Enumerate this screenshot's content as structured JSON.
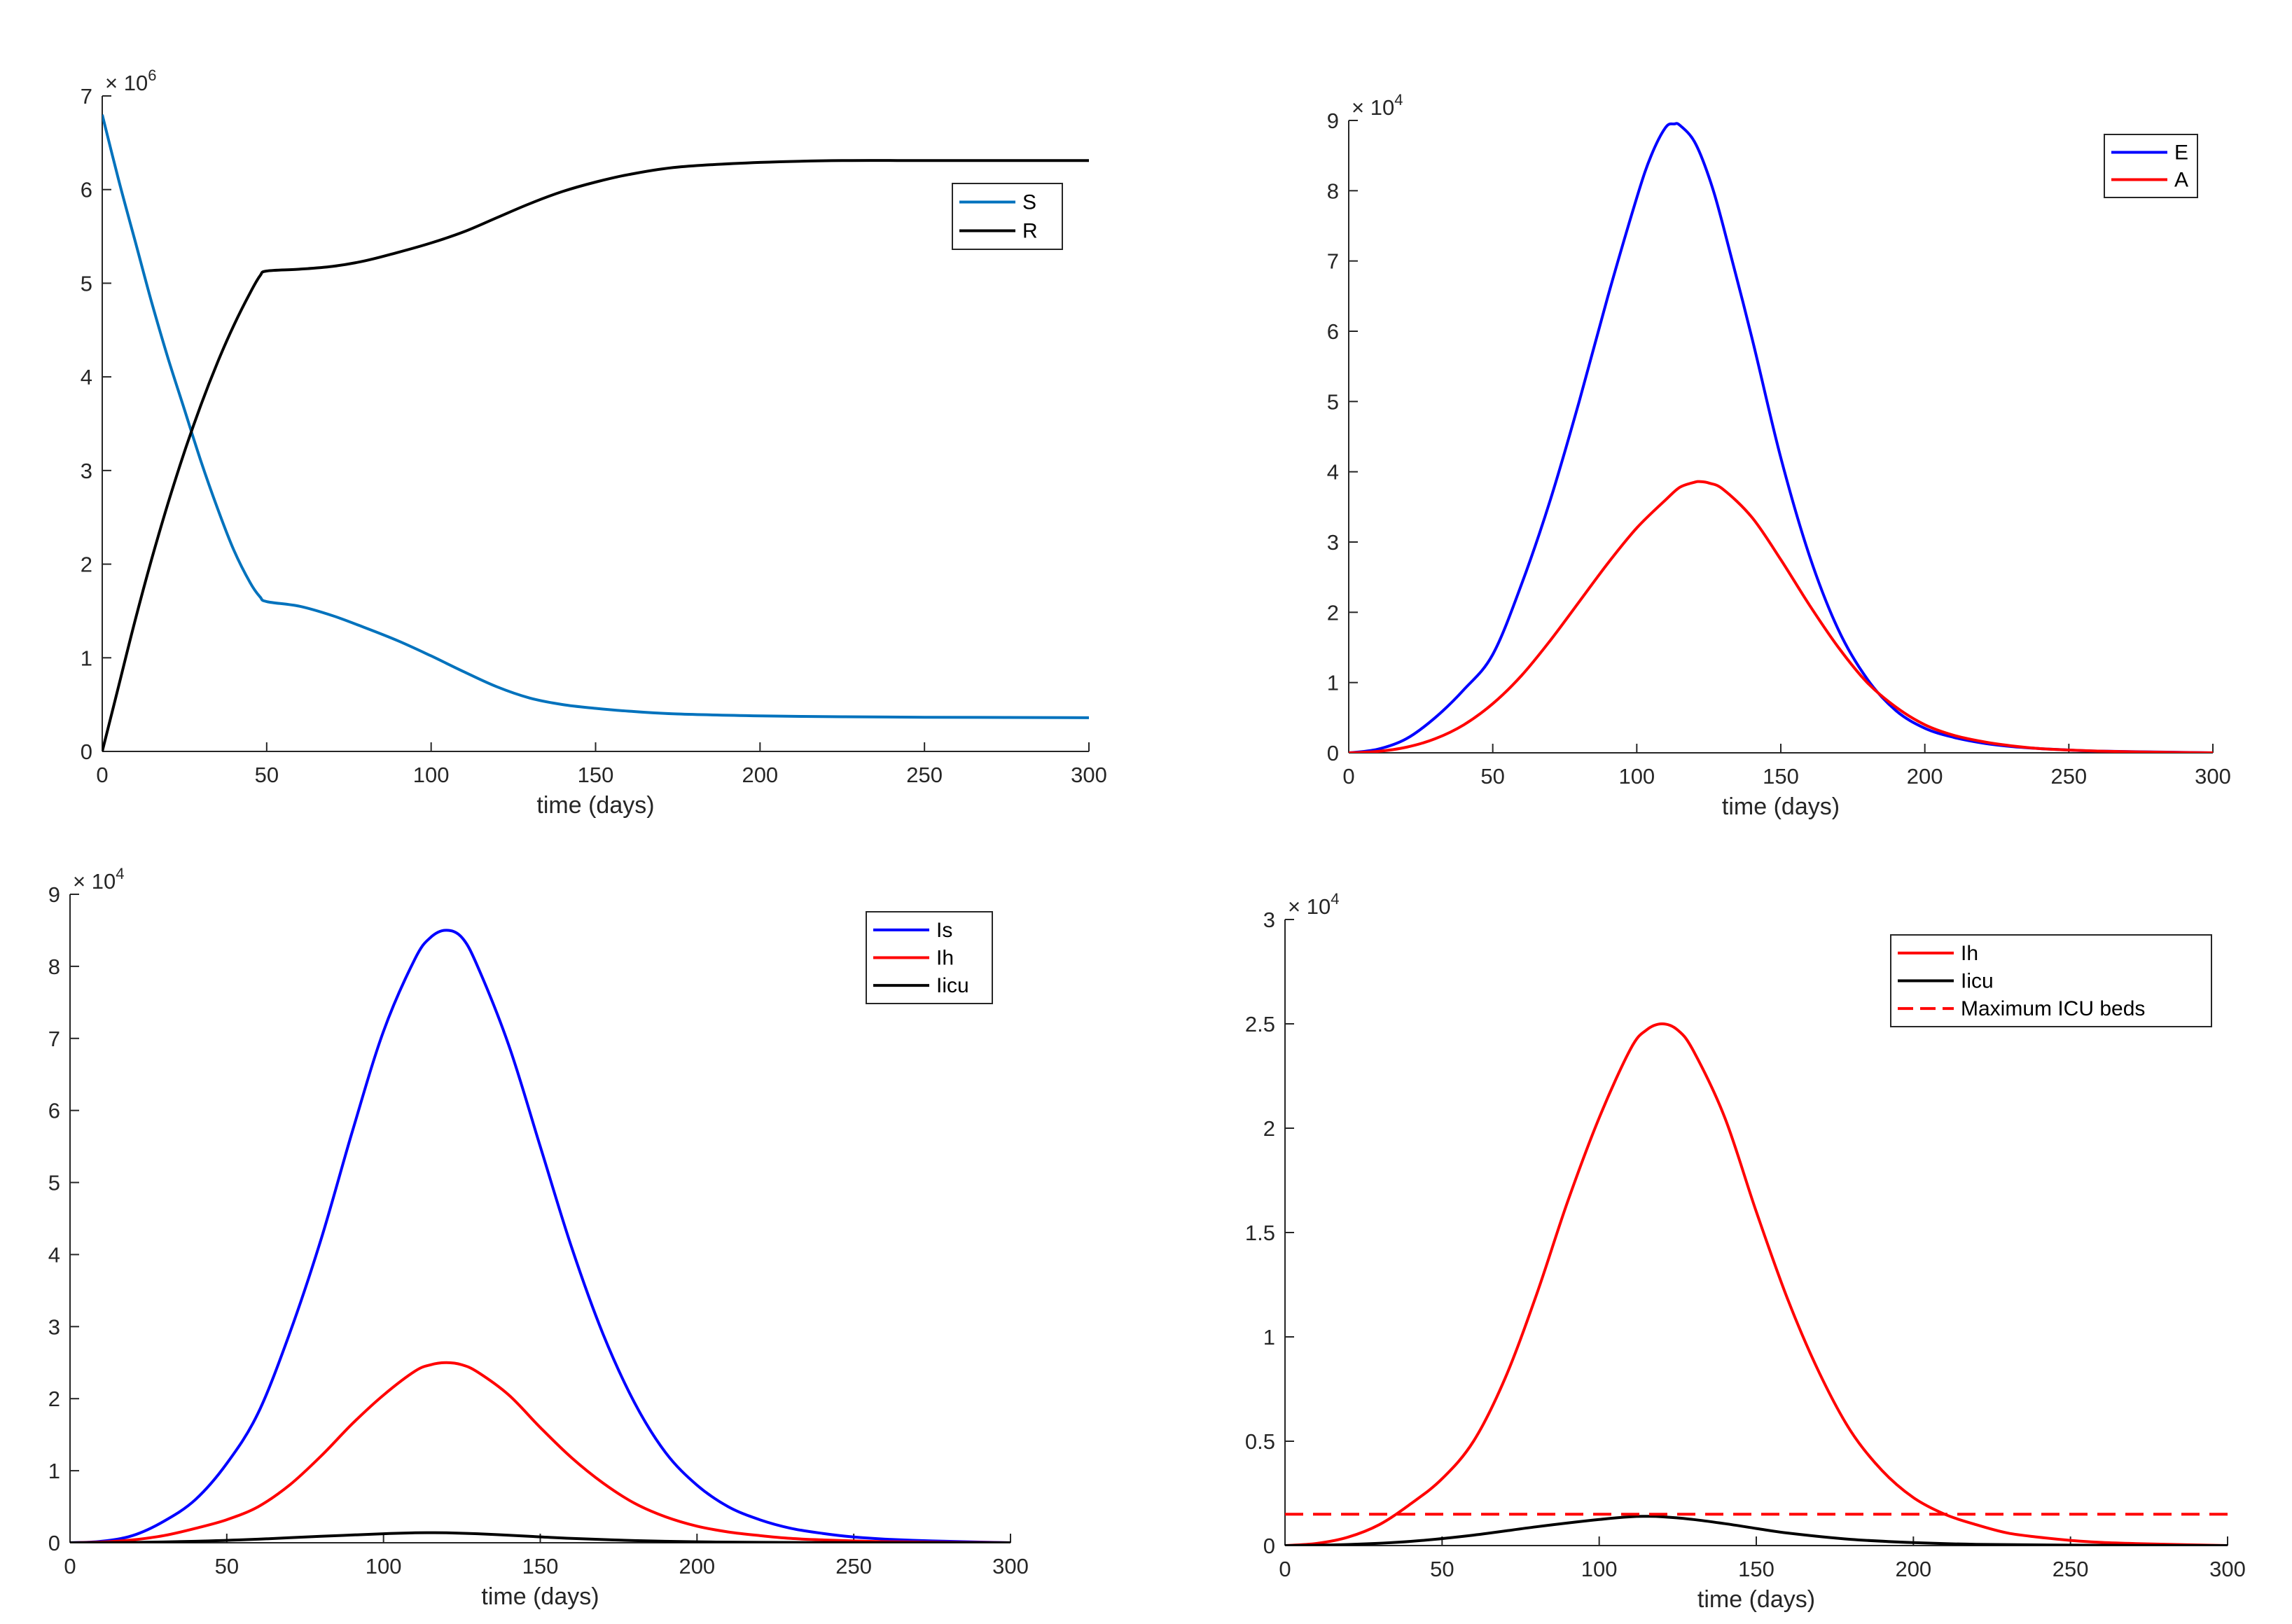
{
  "chart_data": [
    {
      "id": "panel-sr",
      "type": "line",
      "title": "",
      "xlabel": "time (days)",
      "ylabel": "",
      "xlim": [
        0,
        300
      ],
      "ylim": [
        0,
        7
      ],
      "xticks": [
        0,
        50,
        100,
        150,
        200,
        250,
        300
      ],
      "xtick_labels": [
        "0",
        "50",
        "100",
        "150",
        "200",
        "250",
        "300"
      ],
      "yticks": [
        0,
        1,
        2,
        3,
        4,
        5,
        6,
        7
      ],
      "ytick_labels": [
        "0",
        "1",
        "2",
        "3",
        "4",
        "5",
        "6",
        "7"
      ],
      "exponent_base": "× 10",
      "exponent_power": "6",
      "grid": false,
      "legend_position": "top-right",
      "series": [
        {
          "name": "S",
          "color": "#0072BD",
          "dash": "solid",
          "x": [
            0,
            5,
            10,
            15,
            20,
            25,
            30,
            35,
            40,
            45,
            48,
            50,
            60,
            70,
            80,
            90,
            100,
            110,
            120,
            130,
            140,
            150,
            160,
            175,
            200,
            225,
            250,
            275,
            300
          ],
          "values": [
            6.8,
            6.1,
            5.45,
            4.8,
            4.2,
            3.65,
            3.1,
            2.6,
            2.15,
            1.8,
            1.65,
            1.6,
            1.55,
            1.45,
            1.32,
            1.18,
            1.02,
            0.85,
            0.69,
            0.57,
            0.5,
            0.46,
            0.43,
            0.4,
            0.38,
            0.37,
            0.365,
            0.363,
            0.36
          ]
        },
        {
          "name": "R",
          "color": "#000000",
          "dash": "solid",
          "x": [
            0,
            5,
            10,
            15,
            20,
            25,
            30,
            35,
            40,
            45,
            48,
            50,
            60,
            70,
            80,
            90,
            100,
            110,
            120,
            130,
            140,
            150,
            160,
            175,
            200,
            225,
            250,
            275,
            300
          ],
          "values": [
            0.0,
            0.7,
            1.4,
            2.05,
            2.65,
            3.2,
            3.7,
            4.15,
            4.55,
            4.9,
            5.08,
            5.13,
            5.15,
            5.18,
            5.24,
            5.33,
            5.43,
            5.55,
            5.7,
            5.85,
            5.98,
            6.08,
            6.16,
            6.24,
            6.29,
            6.31,
            6.31,
            6.31,
            6.31
          ]
        }
      ]
    },
    {
      "id": "panel-ea",
      "type": "line",
      "title": "",
      "xlabel": "time (days)",
      "ylabel": "",
      "xlim": [
        0,
        300
      ],
      "ylim": [
        0,
        9
      ],
      "xticks": [
        0,
        50,
        100,
        150,
        200,
        250,
        300
      ],
      "xtick_labels": [
        "0",
        "50",
        "100",
        "150",
        "200",
        "250",
        "300"
      ],
      "yticks": [
        0,
        1,
        2,
        3,
        4,
        5,
        6,
        7,
        8,
        9
      ],
      "ytick_labels": [
        "0",
        "1",
        "2",
        "3",
        "4",
        "5",
        "6",
        "7",
        "8",
        "9"
      ],
      "exponent_base": "× 10",
      "exponent_power": "4",
      "grid": false,
      "legend_position": "top-right",
      "series": [
        {
          "name": "E",
          "color": "#0000FF",
          "dash": "solid",
          "x": [
            0,
            10,
            20,
            30,
            40,
            50,
            60,
            70,
            80,
            90,
            100,
            105,
            110,
            113,
            115,
            120,
            125,
            130,
            140,
            150,
            160,
            170,
            180,
            190,
            200,
            210,
            220,
            230,
            240,
            250,
            260,
            275,
            300
          ],
          "values": [
            0.0,
            0.05,
            0.2,
            0.5,
            0.9,
            1.4,
            2.4,
            3.6,
            5.0,
            6.5,
            7.9,
            8.5,
            8.9,
            8.95,
            8.93,
            8.7,
            8.2,
            7.5,
            5.9,
            4.2,
            2.8,
            1.75,
            1.05,
            0.6,
            0.35,
            0.22,
            0.14,
            0.09,
            0.06,
            0.04,
            0.025,
            0.015,
            0.0
          ]
        },
        {
          "name": "A",
          "color": "#FF0000",
          "dash": "solid",
          "x": [
            0,
            10,
            20,
            30,
            40,
            50,
            60,
            70,
            80,
            90,
            100,
            110,
            115,
            120,
            122,
            125,
            130,
            140,
            150,
            160,
            170,
            180,
            190,
            200,
            210,
            220,
            230,
            240,
            250,
            260,
            275,
            300
          ],
          "values": [
            0.0,
            0.02,
            0.08,
            0.2,
            0.4,
            0.7,
            1.1,
            1.6,
            2.15,
            2.7,
            3.2,
            3.6,
            3.78,
            3.85,
            3.86,
            3.84,
            3.75,
            3.35,
            2.75,
            2.1,
            1.5,
            1.0,
            0.65,
            0.4,
            0.25,
            0.16,
            0.1,
            0.06,
            0.04,
            0.025,
            0.012,
            0.0
          ]
        }
      ]
    },
    {
      "id": "panel-is",
      "type": "line",
      "title": "",
      "xlabel": "time (days)",
      "ylabel": "",
      "xlim": [
        0,
        300
      ],
      "ylim": [
        0,
        9
      ],
      "xticks": [
        0,
        50,
        100,
        150,
        200,
        250,
        300
      ],
      "xtick_labels": [
        "0",
        "50",
        "100",
        "150",
        "200",
        "250",
        "300"
      ],
      "yticks": [
        0,
        1,
        2,
        3,
        4,
        5,
        6,
        7,
        8,
        9
      ],
      "ytick_labels": [
        "0",
        "1",
        "2",
        "3",
        "4",
        "5",
        "6",
        "7",
        "8",
        "9"
      ],
      "exponent_base": "× 10",
      "exponent_power": "4",
      "grid": false,
      "legend_position": "top-right",
      "series": [
        {
          "name": "Is",
          "color": "#0000FF",
          "dash": "solid",
          "x": [
            0,
            10,
            20,
            30,
            40,
            50,
            60,
            70,
            80,
            90,
            100,
            110,
            115,
            120,
            125,
            130,
            140,
            150,
            160,
            170,
            180,
            190,
            200,
            210,
            220,
            230,
            240,
            250,
            260,
            275,
            300
          ],
          "values": [
            0.0,
            0.02,
            0.1,
            0.3,
            0.6,
            1.1,
            1.8,
            2.9,
            4.2,
            5.7,
            7.1,
            8.1,
            8.4,
            8.5,
            8.4,
            8.0,
            6.9,
            5.5,
            4.1,
            2.9,
            1.95,
            1.25,
            0.8,
            0.5,
            0.32,
            0.2,
            0.13,
            0.08,
            0.05,
            0.025,
            0.0
          ]
        },
        {
          "name": "Ih",
          "color": "#FF0000",
          "dash": "solid",
          "x": [
            0,
            10,
            20,
            30,
            40,
            50,
            60,
            70,
            80,
            90,
            100,
            110,
            115,
            120,
            125,
            130,
            140,
            150,
            160,
            170,
            180,
            190,
            200,
            210,
            220,
            230,
            240,
            250,
            260,
            275,
            300
          ],
          "values": [
            0.0,
            0.01,
            0.04,
            0.1,
            0.2,
            0.32,
            0.5,
            0.8,
            1.2,
            1.65,
            2.05,
            2.38,
            2.47,
            2.5,
            2.47,
            2.37,
            2.05,
            1.6,
            1.18,
            0.83,
            0.55,
            0.36,
            0.23,
            0.15,
            0.1,
            0.06,
            0.04,
            0.025,
            0.015,
            0.008,
            0.0
          ]
        },
        {
          "name": "Iicu",
          "color": "#000000",
          "dash": "solid",
          "x": [
            0,
            20,
            40,
            60,
            80,
            100,
            110,
            115,
            120,
            130,
            140,
            150,
            160,
            180,
            200,
            220,
            250,
            300
          ],
          "values": [
            0.0,
            0.005,
            0.02,
            0.05,
            0.09,
            0.125,
            0.138,
            0.14,
            0.138,
            0.125,
            0.105,
            0.082,
            0.06,
            0.03,
            0.014,
            0.006,
            0.002,
            0.0
          ]
        }
      ]
    },
    {
      "id": "panel-ih",
      "type": "line",
      "title": "",
      "xlabel": "time (days)",
      "ylabel": "",
      "xlim": [
        0,
        300
      ],
      "ylim": [
        0,
        3
      ],
      "xticks": [
        0,
        50,
        100,
        150,
        200,
        250,
        300
      ],
      "xtick_labels": [
        "0",
        "50",
        "100",
        "150",
        "200",
        "250",
        "300"
      ],
      "yticks": [
        0,
        0.5,
        1,
        1.5,
        2,
        2.5,
        3
      ],
      "ytick_labels": [
        "0",
        "0.5",
        "1",
        "1.5",
        "2",
        "2.5",
        "3"
      ],
      "exponent_base": "× 10",
      "exponent_power": "4",
      "grid": false,
      "legend_position": "top-right",
      "series": [
        {
          "name": "Ih",
          "color": "#FF0000",
          "dash": "solid",
          "x": [
            0,
            10,
            20,
            30,
            40,
            50,
            60,
            70,
            80,
            90,
            100,
            110,
            115,
            120,
            125,
            130,
            140,
            150,
            160,
            170,
            180,
            190,
            200,
            210,
            220,
            230,
            240,
            250,
            260,
            275,
            300
          ],
          "values": [
            0.0,
            0.01,
            0.04,
            0.1,
            0.2,
            0.32,
            0.5,
            0.8,
            1.2,
            1.65,
            2.05,
            2.38,
            2.47,
            2.5,
            2.47,
            2.37,
            2.05,
            1.6,
            1.18,
            0.83,
            0.55,
            0.36,
            0.23,
            0.15,
            0.1,
            0.06,
            0.04,
            0.025,
            0.015,
            0.008,
            0.0
          ]
        },
        {
          "name": "Iicu",
          "color": "#000000",
          "dash": "solid",
          "x": [
            0,
            20,
            40,
            60,
            80,
            100,
            110,
            115,
            120,
            130,
            140,
            150,
            160,
            180,
            200,
            220,
            250,
            300
          ],
          "values": [
            0.0,
            0.005,
            0.02,
            0.05,
            0.09,
            0.125,
            0.138,
            0.14,
            0.138,
            0.125,
            0.105,
            0.082,
            0.06,
            0.03,
            0.014,
            0.006,
            0.002,
            0.0
          ]
        },
        {
          "name": "Maximum ICU beds",
          "color": "#FF0000",
          "dash": "dashed",
          "x": [
            0,
            300
          ],
          "values": [
            0.15,
            0.15
          ]
        }
      ]
    }
  ]
}
